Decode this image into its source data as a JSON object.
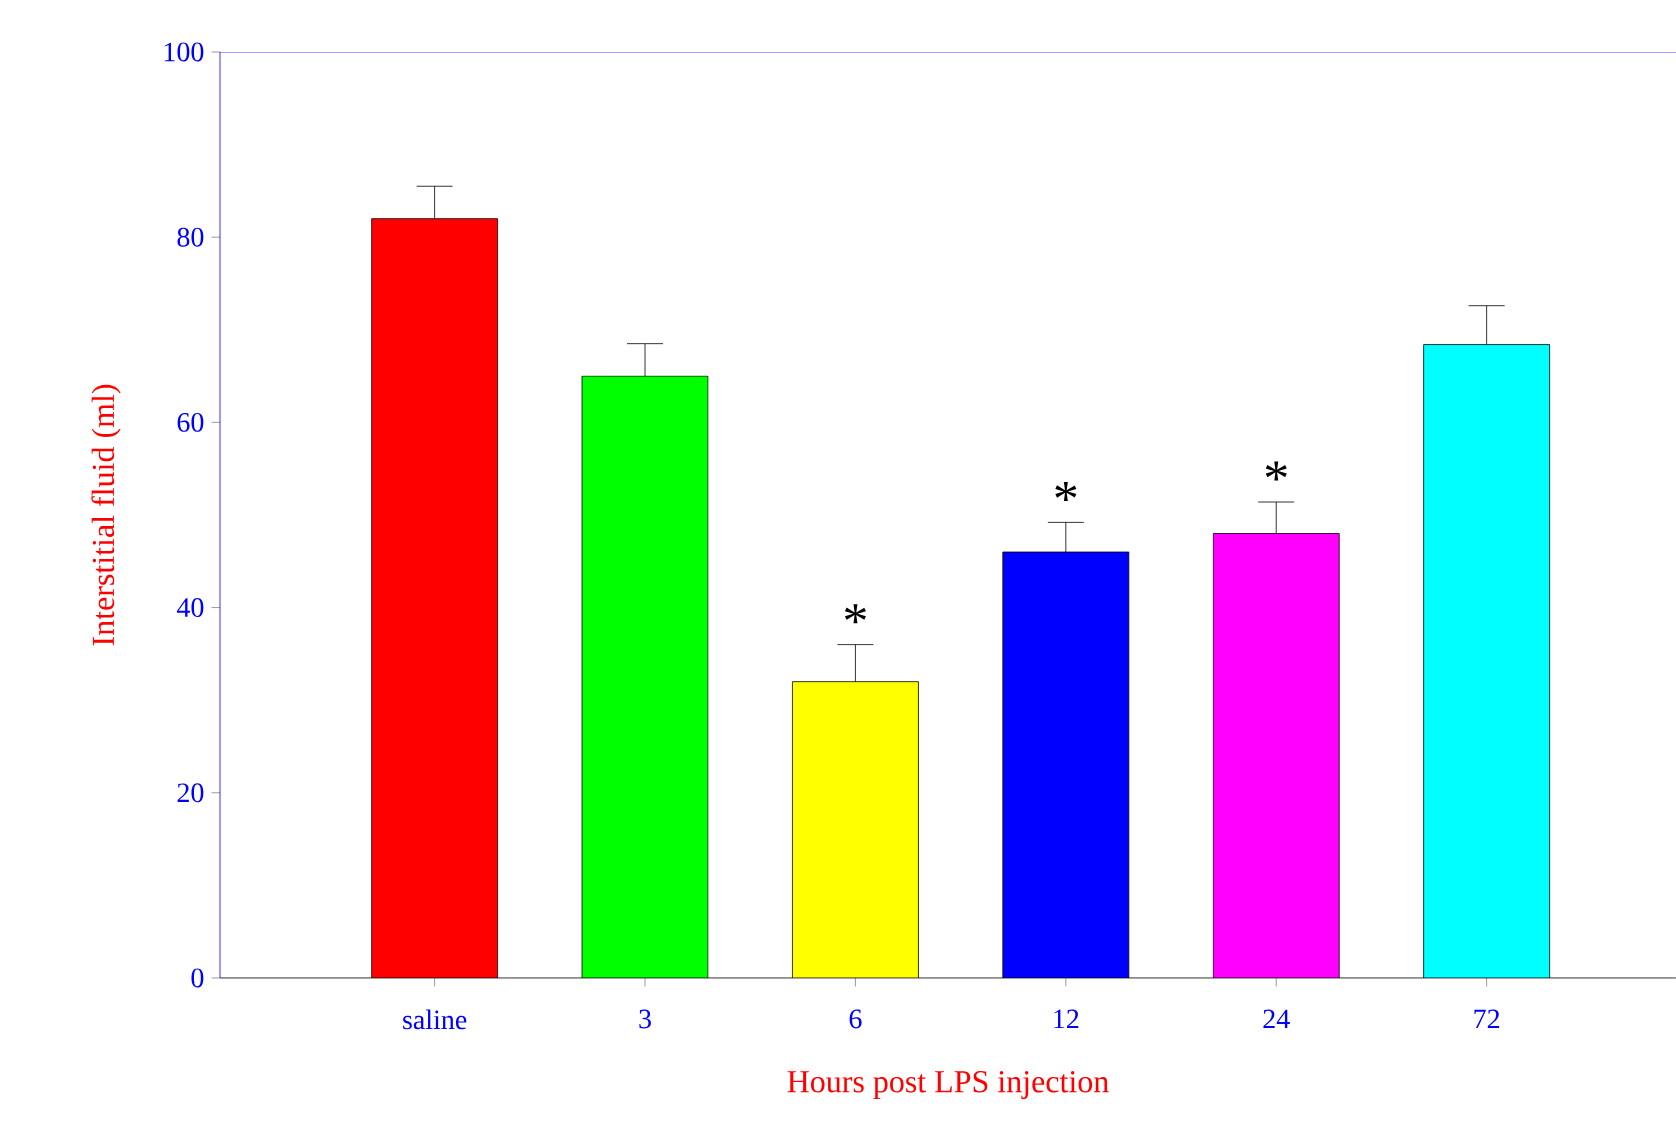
{
  "chart_data": {
    "type": "bar",
    "xlabel": "Hours post LPS injection",
    "ylabel": "Interstitial fluid (ml)",
    "categories": [
      "saline",
      "3",
      "6",
      "12",
      "24",
      "72"
    ],
    "values": [
      82,
      65,
      32,
      46,
      48,
      68.4
    ],
    "colors": [
      "#ff0000",
      "#00ff00",
      "#ffff00",
      "#0000ff",
      "#ff00ff",
      "#00ffff"
    ],
    "errors": [
      3.5,
      3.5,
      4,
      3.2,
      3.4,
      4.2
    ],
    "annotations": [
      {
        "text": "*",
        "x": "6",
        "y": 36
      },
      {
        "text": "*",
        "x": "12",
        "y": 49.2
      },
      {
        "text": "*",
        "x": "24",
        "y": 51.4
      }
    ],
    "ylim": [
      0,
      100
    ],
    "yticks": [
      0,
      20,
      40,
      60,
      80,
      100
    ],
    "grid": false
  }
}
